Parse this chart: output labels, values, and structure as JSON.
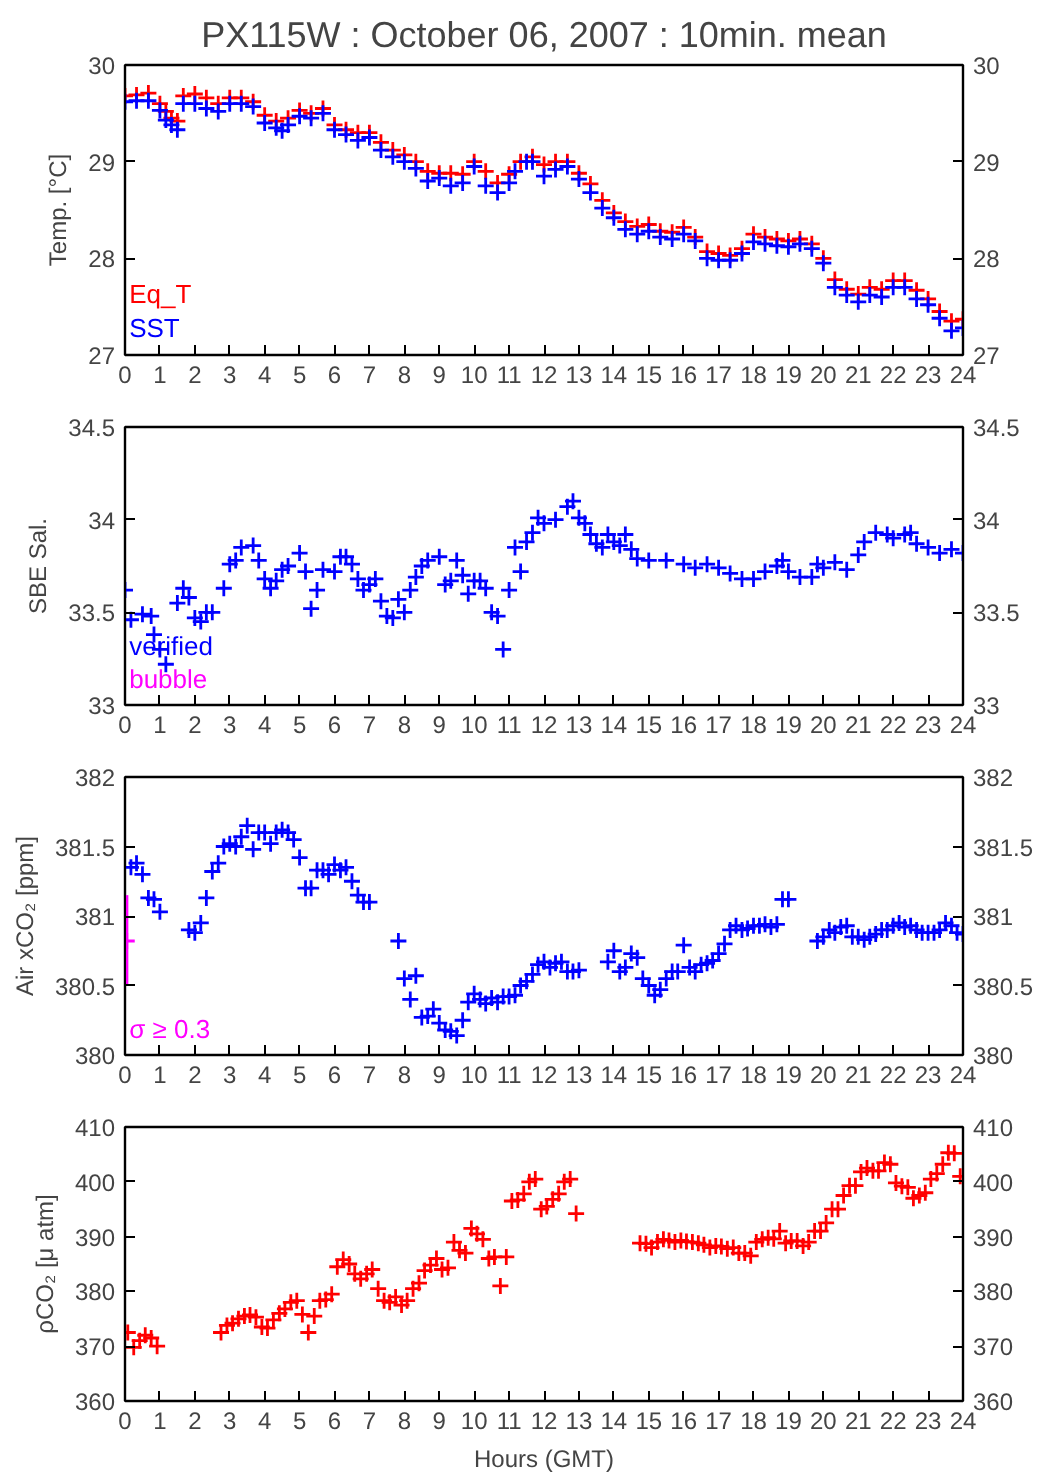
{
  "chart_data": [
    {
      "type": "scatter",
      "title": "PX115W : October 06, 2007 : 10min. mean",
      "ylabel": "Temp. [°C]",
      "marker": "cross",
      "legend": "bottom left",
      "xlim": [
        0,
        24
      ],
      "xticks": [
        0,
        1,
        2,
        3,
        4,
        5,
        6,
        7,
        8,
        9,
        10,
        11,
        12,
        13,
        14,
        15,
        16,
        17,
        18,
        19,
        20,
        21,
        22,
        23,
        24
      ],
      "ylim": [
        27,
        30
      ],
      "yticks": [
        27,
        28,
        29,
        30
      ],
      "y2lim": [
        27,
        30
      ],
      "y2ticks": [
        27,
        28,
        29,
        30
      ],
      "series": [
        {
          "name": "Eq_T",
          "color": "#ff0000",
          "x": [
            0,
            0.33,
            0.67,
            1.0,
            1.17,
            1.33,
            1.5,
            1.67,
            2.0,
            2.33,
            2.67,
            3.0,
            3.33,
            3.67,
            4.0,
            4.33,
            4.67,
            5.0,
            5.33,
            5.67,
            6.0,
            6.33,
            6.67,
            7.0,
            7.33,
            7.67,
            8.0,
            8.33,
            8.67,
            9.0,
            9.33,
            9.67,
            10.0,
            10.33,
            10.67,
            11.0,
            11.33,
            11.67,
            12.0,
            12.33,
            12.67,
            13.0,
            13.33,
            13.67,
            14.0,
            14.33,
            14.67,
            15.0,
            15.33,
            15.67,
            16.0,
            16.33,
            16.67,
            17.0,
            17.33,
            17.67,
            18.0,
            18.33,
            18.67,
            19.0,
            19.33,
            19.67,
            20.0,
            20.33,
            20.67,
            21.0,
            21.33,
            21.67,
            22.0,
            22.33,
            22.67,
            23.0,
            23.33,
            23.67,
            24.0
          ],
          "values": [
            29.68,
            29.69,
            29.71,
            29.6,
            29.52,
            29.45,
            29.42,
            29.68,
            29.7,
            29.66,
            29.6,
            29.66,
            29.66,
            29.62,
            29.48,
            29.42,
            29.45,
            29.53,
            29.5,
            29.55,
            29.38,
            29.33,
            29.3,
            29.3,
            29.2,
            29.12,
            29.07,
            29.0,
            28.9,
            28.88,
            28.88,
            28.87,
            29.0,
            28.9,
            28.78,
            28.87,
            29.0,
            29.05,
            28.97,
            29.0,
            29.0,
            28.88,
            28.77,
            28.6,
            28.47,
            28.38,
            28.33,
            28.35,
            28.28,
            28.27,
            28.32,
            28.22,
            28.07,
            28.05,
            28.03,
            28.1,
            28.25,
            28.22,
            28.2,
            28.18,
            28.2,
            28.15,
            28.0,
            27.78,
            27.68,
            27.63,
            27.7,
            27.68,
            27.77,
            27.77,
            27.67,
            27.58,
            27.45,
            27.35,
            27.37
          ]
        },
        {
          "name": "SST",
          "color": "#0000ff",
          "x": [
            0,
            0.33,
            0.67,
            1.0,
            1.17,
            1.33,
            1.5,
            1.67,
            2.0,
            2.33,
            2.67,
            3.0,
            3.33,
            3.67,
            4.0,
            4.33,
            4.5,
            4.67,
            5.0,
            5.33,
            5.67,
            6.0,
            6.33,
            6.67,
            7.0,
            7.33,
            7.67,
            8.0,
            8.33,
            8.67,
            9.0,
            9.33,
            9.67,
            10.0,
            10.33,
            10.67,
            11.0,
            11.17,
            11.5,
            11.67,
            12.0,
            12.33,
            12.67,
            13.0,
            13.33,
            13.67,
            14.0,
            14.33,
            14.67,
            15.0,
            15.33,
            15.67,
            16.0,
            16.33,
            16.67,
            17.0,
            17.33,
            17.67,
            18.0,
            18.33,
            18.67,
            19.0,
            19.33,
            19.67,
            20.0,
            20.33,
            20.67,
            21.0,
            21.33,
            21.67,
            22.0,
            22.33,
            22.67,
            23.0,
            23.33,
            23.67,
            24.0
          ],
          "values": [
            29.62,
            29.63,
            29.63,
            29.53,
            29.43,
            29.38,
            29.33,
            29.6,
            29.6,
            29.55,
            29.52,
            29.6,
            29.6,
            29.57,
            29.4,
            29.35,
            29.32,
            29.38,
            29.47,
            29.45,
            29.5,
            29.33,
            29.28,
            29.22,
            29.25,
            29.12,
            29.05,
            29.0,
            28.93,
            28.8,
            28.83,
            28.75,
            28.78,
            28.95,
            28.75,
            28.68,
            28.78,
            28.9,
            29.0,
            29.0,
            28.85,
            28.92,
            28.95,
            28.82,
            28.68,
            28.52,
            28.42,
            28.3,
            28.25,
            28.28,
            28.22,
            28.2,
            28.25,
            28.18,
            28.0,
            27.98,
            27.98,
            28.05,
            28.17,
            28.15,
            28.13,
            28.12,
            28.15,
            28.1,
            27.95,
            27.7,
            27.62,
            27.55,
            27.62,
            27.6,
            27.7,
            27.7,
            27.58,
            27.52,
            27.38,
            27.25,
            27.28
          ]
        }
      ]
    },
    {
      "type": "scatter",
      "ylabel": "SBE Sal.",
      "marker": "cross",
      "legend": "bottom left",
      "xlim": [
        0,
        24
      ],
      "xticks": [
        0,
        1,
        2,
        3,
        4,
        5,
        6,
        7,
        8,
        9,
        10,
        11,
        12,
        13,
        14,
        15,
        16,
        17,
        18,
        19,
        20,
        21,
        22,
        23,
        24
      ],
      "ylim": [
        33,
        34.5
      ],
      "yticks": [
        33,
        33.5,
        34,
        34.5
      ],
      "y2lim": [
        33,
        34.5
      ],
      "y2ticks": [
        33,
        33.5,
        34,
        34.5
      ],
      "series": [
        {
          "name": "verified",
          "color": "#0000ff",
          "x": [
            0,
            0.17,
            0.5,
            0.75,
            0.83,
            1.0,
            1.17,
            1.5,
            1.67,
            1.83,
            2.0,
            2.17,
            2.33,
            2.5,
            2.83,
            3.0,
            3.17,
            3.33,
            3.67,
            3.83,
            4.0,
            4.17,
            4.33,
            4.5,
            4.67,
            5.0,
            5.17,
            5.33,
            5.5,
            5.67,
            6.0,
            6.17,
            6.33,
            6.5,
            6.67,
            6.83,
            7.0,
            7.17,
            7.33,
            7.5,
            7.67,
            7.83,
            8.0,
            8.17,
            8.33,
            8.5,
            8.67,
            9.0,
            9.17,
            9.33,
            9.5,
            9.67,
            9.83,
            10.0,
            10.17,
            10.33,
            10.5,
            10.67,
            10.83,
            11.0,
            11.17,
            11.33,
            11.5,
            11.67,
            11.83,
            12.0,
            12.33,
            12.67,
            12.83,
            13.0,
            13.17,
            13.33,
            13.5,
            13.67,
            13.83,
            14.0,
            14.17,
            14.33,
            14.5,
            14.67,
            15.0,
            15.5,
            16.0,
            16.33,
            16.67,
            17.0,
            17.33,
            17.67,
            18.0,
            18.33,
            18.67,
            18.83,
            19.0,
            19.33,
            19.67,
            19.83,
            20.0,
            20.33,
            20.67,
            21.0,
            21.17,
            21.5,
            21.83,
            22.0,
            22.33,
            22.5,
            22.67,
            23.0,
            23.33,
            23.67,
            24.0
          ],
          "values": [
            33.62,
            33.46,
            33.49,
            33.48,
            33.38,
            33.3,
            33.22,
            33.55,
            33.63,
            33.58,
            33.47,
            33.45,
            33.5,
            33.5,
            33.63,
            33.76,
            33.78,
            33.85,
            33.86,
            33.78,
            33.68,
            33.63,
            33.67,
            33.73,
            33.75,
            33.82,
            33.72,
            33.52,
            33.62,
            33.73,
            33.72,
            33.8,
            33.8,
            33.76,
            33.68,
            33.62,
            33.65,
            33.68,
            33.56,
            33.48,
            33.47,
            33.57,
            33.5,
            33.62,
            33.69,
            33.75,
            33.78,
            33.8,
            33.65,
            33.67,
            33.78,
            33.7,
            33.6,
            33.67,
            33.67,
            33.63,
            33.5,
            33.48,
            33.3,
            33.62,
            33.85,
            33.72,
            33.88,
            33.93,
            34.01,
            33.98,
            34.0,
            34.07,
            34.1,
            34.01,
            33.98,
            33.92,
            33.87,
            33.85,
            33.92,
            33.88,
            33.86,
            33.92,
            33.84,
            33.79,
            33.78,
            33.78,
            33.76,
            33.74,
            33.76,
            33.74,
            33.71,
            33.68,
            33.68,
            33.72,
            33.75,
            33.78,
            33.72,
            33.69,
            33.69,
            33.76,
            33.74,
            33.77,
            33.73,
            33.81,
            33.88,
            33.93,
            33.92,
            33.9,
            33.92,
            33.93,
            33.87,
            33.85,
            33.82,
            33.84,
            33.82
          ]
        },
        {
          "name": "bubble",
          "color": "#ff00ff"
        }
      ]
    },
    {
      "type": "scatter",
      "ylabel": "Air xCO₂ [ppm]",
      "marker": "cross",
      "legend": "bottom left",
      "xlim": [
        0,
        24
      ],
      "xticks": [
        0,
        1,
        2,
        3,
        4,
        5,
        6,
        7,
        8,
        9,
        10,
        11,
        12,
        13,
        14,
        15,
        16,
        17,
        18,
        19,
        20,
        21,
        22,
        23,
        24
      ],
      "ylim": [
        380,
        382
      ],
      "yticks": [
        380,
        380.5,
        381,
        381.5,
        382
      ],
      "y2lim": [
        380,
        382
      ],
      "y2ticks": [
        380,
        380.5,
        381,
        381.5,
        382
      ],
      "series": [
        {
          "color": "#0000ff",
          "x": [
            0.17,
            0.33,
            0.5,
            0.67,
            0.83,
            1.0,
            1.83,
            2.0,
            2.17,
            2.33,
            2.5,
            2.67,
            2.83,
            3.0,
            3.17,
            3.33,
            3.5,
            3.67,
            3.83,
            4.0,
            4.17,
            4.33,
            4.5,
            4.67,
            4.83,
            5.0,
            5.17,
            5.33,
            5.5,
            5.67,
            5.83,
            6.0,
            6.17,
            6.33,
            6.5,
            6.67,
            6.83,
            7.0,
            7.83,
            8.0,
            8.17,
            8.33,
            8.5,
            8.67,
            8.83,
            9.0,
            9.17,
            9.33,
            9.5,
            9.67,
            9.83,
            10.0,
            10.17,
            10.33,
            10.5,
            10.67,
            10.83,
            11.0,
            11.17,
            11.33,
            11.5,
            11.67,
            11.83,
            12.0,
            12.17,
            12.33,
            12.5,
            12.67,
            12.83,
            13.0,
            13.83,
            14.0,
            14.17,
            14.33,
            14.5,
            14.67,
            14.83,
            15.0,
            15.17,
            15.33,
            15.5,
            15.67,
            15.83,
            16.0,
            16.17,
            16.33,
            16.5,
            16.67,
            16.83,
            17.0,
            17.17,
            17.33,
            17.5,
            17.67,
            17.83,
            18.0,
            18.17,
            18.33,
            18.5,
            18.67,
            18.83,
            19.0,
            19.83,
            20.0,
            20.17,
            20.33,
            20.5,
            20.67,
            20.83,
            21.0,
            21.17,
            21.33,
            21.5,
            21.67,
            21.83,
            22.0,
            22.17,
            22.33,
            22.5,
            22.67,
            22.83,
            23.0,
            23.17,
            23.33,
            23.5,
            23.67,
            23.83,
            24.0
          ],
          "values": [
            381.35,
            381.38,
            381.3,
            381.13,
            381.12,
            381.03,
            380.9,
            380.88,
            380.95,
            381.13,
            381.32,
            381.38,
            381.5,
            381.52,
            381.5,
            381.57,
            381.65,
            381.48,
            381.6,
            381.6,
            381.52,
            381.6,
            381.62,
            381.6,
            381.55,
            381.42,
            381.2,
            381.2,
            381.33,
            381.33,
            381.3,
            381.37,
            381.33,
            381.35,
            381.25,
            381.15,
            381.1,
            381.1,
            380.82,
            380.55,
            380.4,
            380.57,
            380.27,
            380.28,
            380.33,
            380.23,
            380.18,
            380.17,
            380.14,
            380.25,
            380.38,
            380.44,
            380.4,
            380.37,
            380.41,
            380.38,
            380.42,
            380.42,
            380.43,
            380.5,
            380.53,
            380.58,
            380.65,
            380.67,
            380.63,
            380.66,
            380.67,
            380.6,
            380.6,
            380.61,
            380.67,
            380.75,
            380.6,
            380.63,
            380.73,
            380.7,
            380.55,
            380.5,
            380.43,
            380.47,
            380.55,
            380.6,
            380.6,
            380.79,
            380.63,
            380.6,
            380.65,
            380.66,
            380.68,
            380.73,
            380.8,
            380.9,
            380.93,
            380.9,
            380.91,
            380.93,
            380.93,
            380.94,
            380.92,
            380.94,
            381.12,
            381.12,
            380.82,
            380.85,
            380.9,
            380.88,
            380.92,
            380.93,
            380.85,
            380.85,
            380.83,
            380.85,
            380.87,
            380.9,
            380.9,
            380.93,
            380.95,
            380.92,
            380.93,
            380.9,
            380.88,
            380.88,
            380.88,
            380.9,
            380.95,
            380.93,
            380.88,
            380.87
          ]
        },
        {
          "name": "σ ≥ 0.3",
          "color": "#ff00ff",
          "x": [
            0.05
          ],
          "values": [
            380.82
          ],
          "errors": [
            [
              380.5,
              381.15
            ]
          ]
        }
      ]
    },
    {
      "type": "scatter",
      "ylabel": "ρCO₂ [μ atm]",
      "xlabel": "Hours (GMT)",
      "marker": "cross",
      "xlim": [
        0,
        24
      ],
      "xticks": [
        0,
        1,
        2,
        3,
        4,
        5,
        6,
        7,
        8,
        9,
        10,
        11,
        12,
        13,
        14,
        15,
        16,
        17,
        18,
        19,
        20,
        21,
        22,
        23,
        24
      ],
      "ylim": [
        360,
        410
      ],
      "yticks": [
        360,
        370,
        380,
        390,
        400,
        410
      ],
      "y2lim": [
        360,
        410
      ],
      "y2ticks": [
        360,
        370,
        380,
        390,
        400,
        410
      ],
      "series": [
        {
          "color": "#ff0000",
          "x": [
            0.08,
            0.25,
            0.42,
            0.58,
            0.75,
            0.92,
            2.75,
            2.92,
            3.08,
            3.25,
            3.42,
            3.58,
            3.75,
            3.92,
            4.08,
            4.25,
            4.42,
            4.58,
            4.75,
            4.92,
            5.08,
            5.25,
            5.42,
            5.58,
            5.75,
            5.92,
            6.08,
            6.25,
            6.42,
            6.58,
            6.75,
            6.92,
            7.08,
            7.25,
            7.42,
            7.58,
            7.75,
            7.92,
            8.08,
            8.25,
            8.42,
            8.58,
            8.75,
            8.92,
            9.08,
            9.25,
            9.42,
            9.58,
            9.75,
            9.92,
            10.08,
            10.25,
            10.42,
            10.58,
            10.75,
            10.92,
            11.08,
            11.25,
            11.42,
            11.58,
            11.75,
            11.92,
            12.08,
            12.25,
            12.42,
            12.58,
            12.75,
            12.92,
            14.75,
            14.92,
            15.08,
            15.25,
            15.42,
            15.58,
            15.75,
            15.92,
            16.08,
            16.25,
            16.42,
            16.58,
            16.75,
            16.92,
            17.08,
            17.25,
            17.42,
            17.58,
            17.75,
            17.92,
            18.08,
            18.25,
            18.42,
            18.58,
            18.75,
            18.92,
            19.08,
            19.25,
            19.42,
            19.58,
            19.75,
            19.92,
            20.08,
            20.25,
            20.42,
            20.58,
            20.75,
            20.92,
            21.08,
            21.25,
            21.42,
            21.58,
            21.75,
            21.92,
            22.08,
            22.25,
            22.42,
            22.58,
            22.75,
            22.92,
            23.08,
            23.25,
            23.42,
            23.58,
            23.75,
            23.92
          ],
          "values": [
            372.5,
            369.8,
            371,
            372,
            371.5,
            370,
            372.5,
            373.8,
            374.2,
            375,
            375.5,
            375.7,
            375.3,
            373.5,
            373.3,
            374.8,
            376,
            376.8,
            378,
            378.3,
            375.8,
            372.5,
            375.5,
            378.3,
            378.5,
            379.5,
            384.5,
            385.8,
            385,
            383.2,
            382.3,
            383.2,
            384,
            380.5,
            378.3,
            378,
            379,
            377.5,
            378.3,
            380.5,
            381.5,
            383.8,
            384.8,
            386,
            384,
            384.3,
            389,
            387.5,
            387,
            391.5,
            390.5,
            389.5,
            386,
            386.3,
            381,
            386.3,
            396.5,
            396.7,
            397.8,
            400,
            400.5,
            395,
            395.5,
            396.8,
            397.8,
            400,
            400.5,
            394.2,
            388.8,
            388.7,
            388,
            389,
            389.5,
            389.3,
            389,
            389.3,
            389.1,
            389,
            388.8,
            388.5,
            388,
            388.3,
            388.2,
            387.8,
            388,
            387,
            387,
            386.5,
            389,
            389.5,
            389.8,
            389.6,
            391,
            388.8,
            389.2,
            389.2,
            388.3,
            389,
            391,
            391,
            392.5,
            395,
            395,
            397.5,
            399.3,
            399.3,
            401.8,
            402.5,
            402,
            402,
            403.5,
            403.2,
            399.8,
            399.2,
            399,
            397,
            397.5,
            398,
            400.5,
            401.5,
            403.2,
            405.3,
            405.2,
            401
          ]
        }
      ]
    }
  ]
}
